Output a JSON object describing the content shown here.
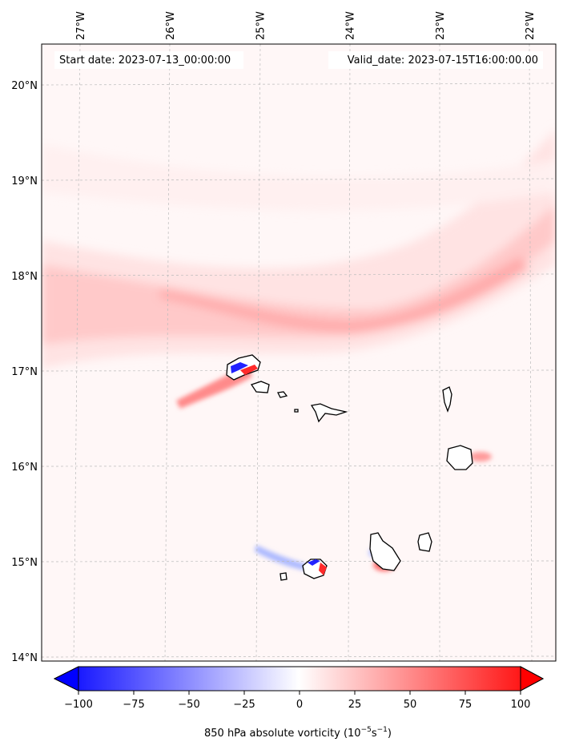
{
  "map": {
    "title_left": "Start date: 2023-07-13_00:00:00",
    "title_right": "Valid_date: 2023-07-15T16:00:00.00",
    "lon_labels": [
      "27°W",
      "26°W",
      "25°W",
      "24°W",
      "23°W",
      "22°W"
    ],
    "lat_labels": [
      "20°N",
      "19°N",
      "18°N",
      "17°N",
      "16°N",
      "15°N",
      "14°N"
    ],
    "lon_values": [
      -27,
      -26,
      -25,
      -24,
      -23,
      -22
    ],
    "lat_values": [
      20,
      19,
      18,
      17,
      16,
      15,
      14
    ]
  },
  "colorbar": {
    "ticks": [
      "−100",
      "−75",
      "−50",
      "−25",
      "0",
      "25",
      "50",
      "75",
      "100"
    ],
    "tick_values": [
      -100,
      -75,
      -50,
      -25,
      0,
      25,
      50,
      75,
      100
    ],
    "label_text": "850 hPa absolute vorticity (10",
    "label_exp1": "−5",
    "label_mid": "s",
    "label_exp2": "−1",
    "label_end": ")",
    "colormap": "bwr",
    "range": [
      -100,
      100
    ]
  },
  "colors": {
    "frame": "#000000",
    "grid": "#bbbbbb",
    "negative": "#0000ff",
    "positive": "#ff0000",
    "neutral": "#ffffff"
  }
}
